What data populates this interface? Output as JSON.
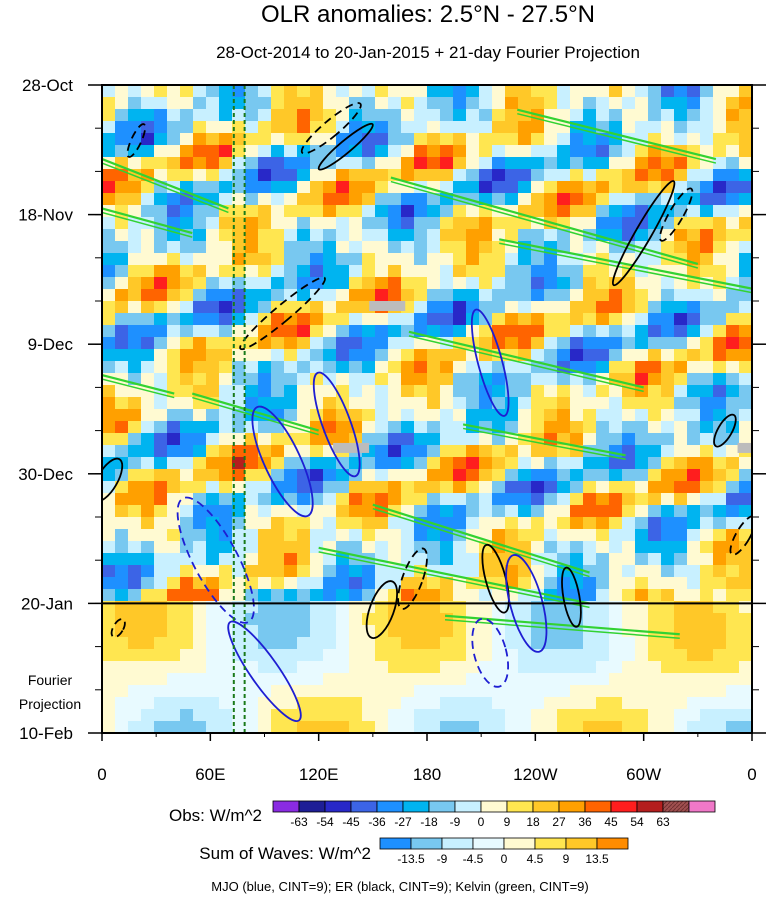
{
  "chart_data": {
    "type": "heatmap",
    "title": "OLR anomalies: 2.5°N - 27.5°N",
    "subtitle": "28-Oct-2014 to 20-Jan-2015 + 21-day Fourier Projection",
    "x_ticks": [
      "0",
      "60E",
      "120E",
      "180",
      "120W",
      "60W",
      "0"
    ],
    "x_tick_values": [
      0,
      60,
      120,
      180,
      240,
      300,
      360
    ],
    "y_ticks": [
      "28-Oct",
      "18-Nov",
      "9-Dec",
      "30-Dec",
      "20-Jan",
      "10-Feb"
    ],
    "y_tick_days": [
      0,
      21,
      42,
      63,
      84,
      105
    ],
    "divider_day": 84,
    "projection_label_line1": "Fourier",
    "projection_label_line2": "Projection",
    "obs_colorbar": {
      "label": "Obs: W/m^2",
      "ticks": [
        "-63",
        "-54",
        "-45",
        "-36",
        "-27",
        "-18",
        "-9",
        "0",
        "9",
        "18",
        "27",
        "36",
        "45",
        "54",
        "63"
      ],
      "colors": [
        "#8a2be2",
        "#1e1e96",
        "#2828c8",
        "#3c64e6",
        "#1e90ff",
        "#00b4f0",
        "#78c8f0",
        "#c8f0ff",
        "#fffad2",
        "#ffe650",
        "#ffc828",
        "#ffa000",
        "#ff6400",
        "#ff1e1e",
        "#b41e1e",
        "#a05050",
        "#f078c8"
      ]
    },
    "waves_colorbar": {
      "label": "Sum of Waves: W/m^2",
      "ticks": [
        "-13.5",
        "-9",
        "-4.5",
        "0",
        "4.5",
        "9",
        "13.5"
      ],
      "colors": [
        "#1e90ff",
        "#78c8f0",
        "#c8f0ff",
        "#e8faff",
        "#fffad2",
        "#ffe650",
        "#ffc828",
        "#ff8c00"
      ]
    },
    "legend_text": "MJO (blue, CINT=9); ER (black, CINT=9); Kelvin (green, CINT=9)",
    "wave_colors": {
      "MJO": "#1e1ed2",
      "ER": "#000000",
      "Kelvin": "#32d232"
    },
    "reference_lines_lon": [
      73,
      79
    ]
  }
}
